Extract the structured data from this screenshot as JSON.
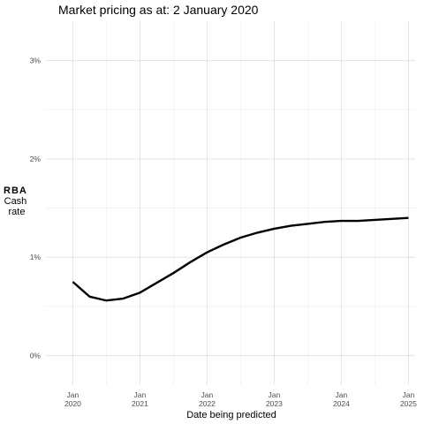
{
  "chart_data": {
    "type": "line",
    "title": "Market pricing as at:  2 January 2020",
    "xlabel": "Date being predicted",
    "ylabel": [
      "RBA",
      "Cash",
      "rate"
    ],
    "ylim": [
      -0.3,
      3.4
    ],
    "xlim": [
      2019.6,
      2025.1
    ],
    "y_ticks": [
      {
        "value": 0,
        "label": "0%"
      },
      {
        "value": 1,
        "label": "1%"
      },
      {
        "value": 2,
        "label": "2%"
      },
      {
        "value": 3,
        "label": "3%"
      }
    ],
    "x_ticks": [
      {
        "value": 2020,
        "label": [
          "Jan",
          "2020"
        ]
      },
      {
        "value": 2021,
        "label": [
          "Jan",
          "2021"
        ]
      },
      {
        "value": 2022,
        "label": [
          "Jan",
          "2022"
        ]
      },
      {
        "value": 2023,
        "label": [
          "Jan",
          "2023"
        ]
      },
      {
        "value": 2024,
        "label": [
          "Jan",
          "2024"
        ]
      },
      {
        "value": 2025,
        "label": [
          "Jan",
          "2025"
        ]
      }
    ],
    "grid": true,
    "series": [
      {
        "color": "#000000",
        "x": [
          "2020-01",
          "2020-04",
          "2020-07",
          "2020-10",
          "2021-01",
          "2021-04",
          "2021-07",
          "2021-10",
          "2022-01",
          "2022-04",
          "2022-07",
          "2022-10",
          "2023-01",
          "2023-04",
          "2023-07",
          "2023-10",
          "2024-01",
          "2024-04",
          "2024-07",
          "2024-10",
          "2025-01"
        ],
        "values": [
          0.75,
          0.6,
          0.56,
          0.58,
          0.64,
          0.74,
          0.84,
          0.95,
          1.05,
          1.13,
          1.2,
          1.25,
          1.29,
          1.32,
          1.34,
          1.36,
          1.37,
          1.37,
          1.38,
          1.39,
          1.4
        ]
      }
    ]
  }
}
